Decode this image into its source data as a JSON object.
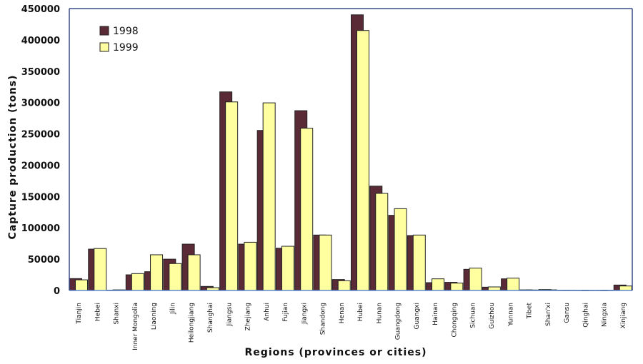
{
  "chart_data": {
    "type": "bar",
    "title": "",
    "xlabel": "Regions (provinces or cities)",
    "ylabel": "Capture production (tons)",
    "ylim": [
      0,
      450000
    ],
    "yticks": [
      "0",
      "50000",
      "100000",
      "150000",
      "200000",
      "250000",
      "300000",
      "350000",
      "400000",
      "450000"
    ],
    "grid": false,
    "legend_position": "top-left",
    "categories": [
      "Tianjin",
      "Hebei",
      "Shanxi",
      "Inner Mongolia",
      "Liaoning",
      "Jilin",
      "Heilongjiang",
      "Shanghai",
      "Jiangsu",
      "Zhejiang",
      "Anhui",
      "Fujian",
      "Jiangxi",
      "Shandong",
      "Henan",
      "Hubei",
      "Hunan",
      "Guangdong",
      "Guangxi",
      "Hainan",
      "Chongqing",
      "Sichuan",
      "Guizhou",
      "Yunnan",
      "Tibet",
      "Shan'xi",
      "Gansu",
      "Qinghai",
      "Ningxia",
      "Xinjiang"
    ],
    "series": [
      {
        "name": "1998",
        "color": "#5a2a36",
        "values": [
          19000,
          66000,
          500,
          25000,
          30000,
          50000,
          74000,
          6500,
          317000,
          74000,
          255500,
          67500,
          287000,
          88500,
          17500,
          440000,
          166600,
          120000,
          87700,
          12500,
          13000,
          33800,
          5300,
          18600,
          1000,
          1500,
          500,
          300,
          300,
          8700
        ]
      },
      {
        "name": "1999",
        "color": "#ffffa0",
        "values": [
          17000,
          67000,
          1000,
          27000,
          57000,
          43000,
          57000,
          4500,
          301000,
          77000,
          299500,
          70600,
          259000,
          88500,
          15600,
          415000,
          155000,
          130600,
          88500,
          18600,
          11800,
          35700,
          5700,
          19700,
          800,
          1000,
          500,
          300,
          300,
          7200
        ]
      }
    ]
  }
}
